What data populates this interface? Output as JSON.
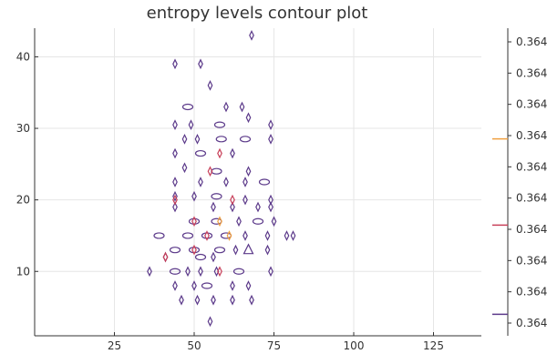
{
  "chart_data": {
    "type": "contour",
    "title": "entropy levels contour plot",
    "xlabel": "",
    "ylabel": "",
    "xlim": [
      0,
      140
    ],
    "ylim": [
      1,
      44
    ],
    "grid": true,
    "legend": "none",
    "x_ticks": [
      25,
      50,
      75,
      100,
      125
    ],
    "y_ticks": [
      10,
      20,
      30,
      40
    ],
    "colorbar": {
      "orientation": "vertical",
      "position": "right",
      "tick_labels": [
        "0.364",
        "0.364",
        "0.364",
        "0.364",
        "0.364",
        "0.364",
        "0.364",
        "0.364",
        "0.364",
        "0.364"
      ],
      "level_marks": [
        {
          "level": 0.64,
          "color": "#f0a040"
        },
        {
          "level": 0.36,
          "color": "#c8405a"
        },
        {
          "level": 0.07,
          "color": "#5c3a8a"
        }
      ]
    },
    "contour_features": [
      {
        "x": 68,
        "y": 43,
        "shape": "diamond",
        "color": "#5c3a8a"
      },
      {
        "x": 44,
        "y": 39,
        "shape": "diamond",
        "color": "#5c3a8a"
      },
      {
        "x": 52,
        "y": 39,
        "shape": "diamond",
        "color": "#5c3a8a"
      },
      {
        "x": 55,
        "y": 36,
        "shape": "diamond",
        "color": "#5c3a8a"
      },
      {
        "x": 48,
        "y": 33,
        "shape": "oval",
        "color": "#5c3a8a"
      },
      {
        "x": 60,
        "y": 33,
        "shape": "diamond",
        "color": "#5c3a8a"
      },
      {
        "x": 65,
        "y": 33,
        "shape": "diamond",
        "color": "#5c3a8a"
      },
      {
        "x": 67,
        "y": 31.5,
        "shape": "diamond",
        "color": "#5c3a8a"
      },
      {
        "x": 44,
        "y": 30.5,
        "shape": "diamond",
        "color": "#5c3a8a"
      },
      {
        "x": 49,
        "y": 30.5,
        "shape": "diamond",
        "color": "#5c3a8a"
      },
      {
        "x": 58,
        "y": 30.5,
        "shape": "oval",
        "color": "#5c3a8a"
      },
      {
        "x": 74,
        "y": 30.5,
        "shape": "diamond",
        "color": "#5c3a8a"
      },
      {
        "x": 47,
        "y": 28.5,
        "shape": "diamond",
        "color": "#5c3a8a"
      },
      {
        "x": 51,
        "y": 28.5,
        "shape": "diamond",
        "color": "#5c3a8a"
      },
      {
        "x": 58.5,
        "y": 28.5,
        "shape": "oval",
        "color": "#5c3a8a"
      },
      {
        "x": 66,
        "y": 28.5,
        "shape": "oval",
        "color": "#5c3a8a"
      },
      {
        "x": 74,
        "y": 28.5,
        "shape": "diamond",
        "color": "#5c3a8a"
      },
      {
        "x": 44,
        "y": 26.5,
        "shape": "diamond",
        "color": "#5c3a8a"
      },
      {
        "x": 52,
        "y": 26.5,
        "shape": "oval",
        "color": "#5c3a8a"
      },
      {
        "x": 62,
        "y": 26.5,
        "shape": "diamond",
        "color": "#5c3a8a"
      },
      {
        "x": 47,
        "y": 24.5,
        "shape": "diamond",
        "color": "#5c3a8a"
      },
      {
        "x": 57,
        "y": 24,
        "shape": "oval",
        "color": "#5c3a8a"
      },
      {
        "x": 67,
        "y": 24,
        "shape": "diamond",
        "color": "#5c3a8a"
      },
      {
        "x": 44,
        "y": 22.5,
        "shape": "diamond",
        "color": "#5c3a8a"
      },
      {
        "x": 52,
        "y": 22.5,
        "shape": "diamond",
        "color": "#5c3a8a"
      },
      {
        "x": 60,
        "y": 22.5,
        "shape": "diamond",
        "color": "#5c3a8a"
      },
      {
        "x": 66,
        "y": 22.5,
        "shape": "diamond",
        "color": "#5c3a8a"
      },
      {
        "x": 72,
        "y": 22.5,
        "shape": "oval",
        "color": "#5c3a8a"
      },
      {
        "x": 44,
        "y": 20.5,
        "shape": "diamond",
        "color": "#5c3a8a"
      },
      {
        "x": 50,
        "y": 20.5,
        "shape": "diamond",
        "color": "#5c3a8a"
      },
      {
        "x": 57,
        "y": 20.5,
        "shape": "oval",
        "color": "#5c3a8a"
      },
      {
        "x": 66,
        "y": 20,
        "shape": "diamond",
        "color": "#5c3a8a"
      },
      {
        "x": 74,
        "y": 20,
        "shape": "diamond",
        "color": "#5c3a8a"
      },
      {
        "x": 44,
        "y": 19,
        "shape": "diamond",
        "color": "#5c3a8a"
      },
      {
        "x": 56,
        "y": 19,
        "shape": "diamond",
        "color": "#5c3a8a"
      },
      {
        "x": 62,
        "y": 19,
        "shape": "diamond",
        "color": "#5c3a8a"
      },
      {
        "x": 70,
        "y": 19,
        "shape": "diamond",
        "color": "#5c3a8a"
      },
      {
        "x": 74,
        "y": 19,
        "shape": "diamond",
        "color": "#5c3a8a"
      },
      {
        "x": 50,
        "y": 17,
        "shape": "oval",
        "color": "#5c3a8a"
      },
      {
        "x": 57,
        "y": 17,
        "shape": "oval",
        "color": "#5c3a8a"
      },
      {
        "x": 64,
        "y": 17,
        "shape": "diamond",
        "color": "#5c3a8a"
      },
      {
        "x": 70,
        "y": 17,
        "shape": "oval",
        "color": "#5c3a8a"
      },
      {
        "x": 75,
        "y": 17,
        "shape": "diamond",
        "color": "#5c3a8a"
      },
      {
        "x": 39,
        "y": 15,
        "shape": "oval",
        "color": "#5c3a8a"
      },
      {
        "x": 48,
        "y": 15,
        "shape": "oval",
        "color": "#5c3a8a"
      },
      {
        "x": 54,
        "y": 15,
        "shape": "oval",
        "color": "#5c3a8a"
      },
      {
        "x": 60,
        "y": 15,
        "shape": "oval",
        "color": "#5c3a8a"
      },
      {
        "x": 66,
        "y": 15,
        "shape": "diamond",
        "color": "#5c3a8a"
      },
      {
        "x": 73,
        "y": 15,
        "shape": "diamond",
        "color": "#5c3a8a"
      },
      {
        "x": 79,
        "y": 15,
        "shape": "diamond",
        "color": "#5c3a8a"
      },
      {
        "x": 81,
        "y": 15,
        "shape": "diamond",
        "color": "#5c3a8a"
      },
      {
        "x": 44,
        "y": 13,
        "shape": "oval",
        "color": "#5c3a8a"
      },
      {
        "x": 50,
        "y": 13,
        "shape": "oval",
        "color": "#5c3a8a"
      },
      {
        "x": 58,
        "y": 13,
        "shape": "oval",
        "color": "#5c3a8a"
      },
      {
        "x": 63,
        "y": 13,
        "shape": "diamond",
        "color": "#5c3a8a"
      },
      {
        "x": 67,
        "y": 13,
        "shape": "triangle",
        "color": "#5c3a8a"
      },
      {
        "x": 73,
        "y": 13,
        "shape": "diamond",
        "color": "#5c3a8a"
      },
      {
        "x": 41,
        "y": 12,
        "shape": "diamond",
        "color": "#5c3a8a"
      },
      {
        "x": 52,
        "y": 12,
        "shape": "oval",
        "color": "#5c3a8a"
      },
      {
        "x": 56,
        "y": 12,
        "shape": "diamond",
        "color": "#5c3a8a"
      },
      {
        "x": 36,
        "y": 10,
        "shape": "diamond",
        "color": "#5c3a8a"
      },
      {
        "x": 44,
        "y": 10,
        "shape": "oval",
        "color": "#5c3a8a"
      },
      {
        "x": 48,
        "y": 10,
        "shape": "diamond",
        "color": "#5c3a8a"
      },
      {
        "x": 52,
        "y": 10,
        "shape": "diamond",
        "color": "#5c3a8a"
      },
      {
        "x": 57,
        "y": 10,
        "shape": "diamond",
        "color": "#5c3a8a"
      },
      {
        "x": 64,
        "y": 10,
        "shape": "oval",
        "color": "#5c3a8a"
      },
      {
        "x": 74,
        "y": 10,
        "shape": "diamond",
        "color": "#5c3a8a"
      },
      {
        "x": 44,
        "y": 8,
        "shape": "diamond",
        "color": "#5c3a8a"
      },
      {
        "x": 50,
        "y": 8,
        "shape": "diamond",
        "color": "#5c3a8a"
      },
      {
        "x": 54,
        "y": 8,
        "shape": "oval",
        "color": "#5c3a8a"
      },
      {
        "x": 62,
        "y": 8,
        "shape": "diamond",
        "color": "#5c3a8a"
      },
      {
        "x": 67,
        "y": 8,
        "shape": "diamond",
        "color": "#5c3a8a"
      },
      {
        "x": 46,
        "y": 6,
        "shape": "diamond",
        "color": "#5c3a8a"
      },
      {
        "x": 51,
        "y": 6,
        "shape": "diamond",
        "color": "#5c3a8a"
      },
      {
        "x": 56,
        "y": 6,
        "shape": "diamond",
        "color": "#5c3a8a"
      },
      {
        "x": 62,
        "y": 6,
        "shape": "diamond",
        "color": "#5c3a8a"
      },
      {
        "x": 68,
        "y": 6,
        "shape": "diamond",
        "color": "#5c3a8a"
      },
      {
        "x": 55,
        "y": 3,
        "shape": "diamond",
        "color": "#5c3a8a"
      },
      {
        "x": 58,
        "y": 26.5,
        "shape": "diamond",
        "color": "#c8405a"
      },
      {
        "x": 55,
        "y": 24,
        "shape": "diamond",
        "color": "#c8405a"
      },
      {
        "x": 44,
        "y": 20,
        "shape": "diamond",
        "color": "#c8405a"
      },
      {
        "x": 62,
        "y": 20,
        "shape": "diamond",
        "color": "#c8405a"
      },
      {
        "x": 50,
        "y": 17,
        "shape": "diamond",
        "color": "#c8405a"
      },
      {
        "x": 58,
        "y": 17,
        "shape": "diamond",
        "color": "#f0a040"
      },
      {
        "x": 54,
        "y": 15,
        "shape": "diamond",
        "color": "#c8405a"
      },
      {
        "x": 61,
        "y": 15,
        "shape": "diamond",
        "color": "#f0a040"
      },
      {
        "x": 50,
        "y": 13,
        "shape": "diamond",
        "color": "#c8405a"
      },
      {
        "x": 41,
        "y": 12,
        "shape": "diamond",
        "color": "#c8405a"
      },
      {
        "x": 58,
        "y": 10,
        "shape": "diamond",
        "color": "#c8405a"
      }
    ]
  }
}
